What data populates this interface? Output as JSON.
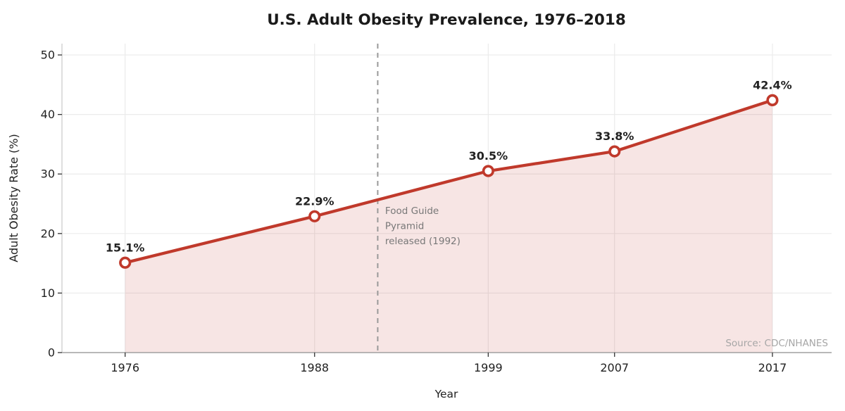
{
  "chart_data": {
    "type": "line",
    "title": "U.S. Adult Obesity Prevalence, 1976–2018",
    "xlabel": "Year",
    "ylabel": "Adult Obesity Rate (%)",
    "x": [
      1976,
      1988,
      1999,
      2007,
      2017
    ],
    "values": [
      15.1,
      22.9,
      30.5,
      33.8,
      42.4
    ],
    "point_labels": [
      "15.1%",
      "22.9%",
      "30.5%",
      "33.8%",
      "42.4%"
    ],
    "xticks": [
      1976,
      1988,
      1999,
      2007,
      2017
    ],
    "yticks": [
      0,
      10,
      20,
      30,
      40,
      50
    ],
    "xlim": [
      1972.0,
      2020.75
    ],
    "ylim": [
      0,
      51.9
    ],
    "grid": true,
    "area_fill": true,
    "legend": "none",
    "annotation": {
      "lines": [
        "Food Guide",
        "Pyramid",
        "released (1992)"
      ],
      "year": 1992
    },
    "source": "Source: CDC/NHANES",
    "colors": {
      "line": "#c0392b",
      "marker_fill": "#ffffff",
      "area": "rgba(192,57,43,0.13)",
      "grid": "#ebebeb",
      "event_line": "#999999",
      "annotation_text": "#787878",
      "source_text": "#a6a6a6",
      "tick_text": "#222222",
      "title_text": "#1a1a1a",
      "axis_left": "#c8c8c8",
      "axis_bottom": "#a0a0a0",
      "tick_mark": "#333333"
    }
  }
}
